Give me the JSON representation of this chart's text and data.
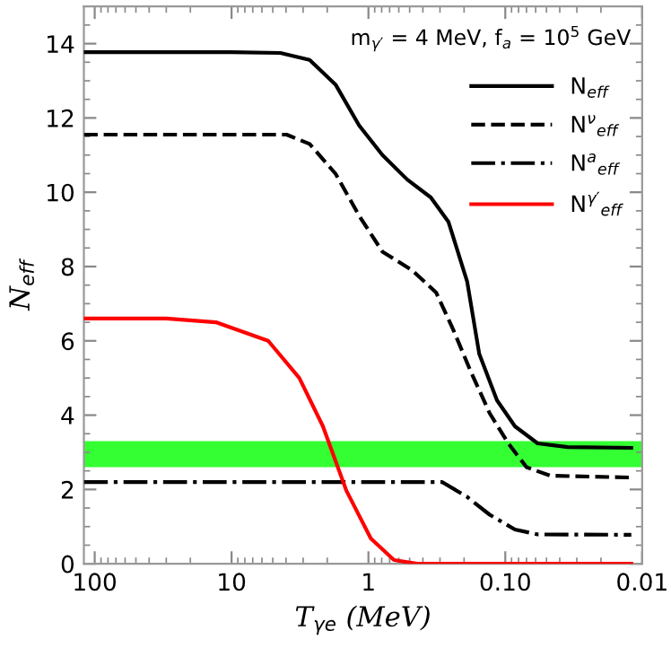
{
  "chart_data": {
    "type": "line",
    "xlabel": "T$_{γe}$ (MeV)",
    "ylabel": "N$_{eff}$",
    "annotations": [
      "m$_{γ′}$ = 4 MeV, f$_{a}$ = 10$^{5}$ GeV"
    ],
    "log": "x",
    "xlim": [
      120,
      0.01
    ],
    "xticks": [
      100,
      10,
      1,
      {
        "value": 0.1,
        "label": "0.10"
      },
      0.01
    ],
    "ylim": [
      0,
      15
    ],
    "yticks": [
      0,
      2,
      4,
      6,
      8,
      10,
      12,
      14
    ],
    "grid": false,
    "legend": "top right",
    "bands": [
      {
        "axis": "y",
        "from": 2.6,
        "to": 3.3,
        "color": "#33ff33"
      }
    ],
    "series": [
      {
        "name": "N$_{eff}$",
        "color": "#000000",
        "line_style": "solid",
        "x": [
          120,
          10,
          4.4,
          2.69,
          1.74,
          1.17,
          0.79,
          0.52,
          0.35,
          0.26,
          0.19,
          0.155,
          0.115,
          0.085,
          0.058,
          0.035,
          0.012
        ],
        "values": [
          13.77,
          13.77,
          13.75,
          13.56,
          12.9,
          11.8,
          11.0,
          10.34,
          9.86,
          9.2,
          7.6,
          5.65,
          4.4,
          3.7,
          3.24,
          3.14,
          3.12
        ]
      },
      {
        "name": "N$^{ν}$$_{eff}$",
        "color": "#000000",
        "line_style": "dashed",
        "x": [
          120,
          10,
          3.96,
          2.69,
          1.74,
          1.17,
          0.79,
          0.48,
          0.32,
          0.24,
          0.18,
          0.13,
          0.095,
          0.07,
          0.047,
          0.012
        ],
        "values": [
          11.55,
          11.55,
          11.55,
          11.3,
          10.5,
          9.37,
          8.4,
          7.9,
          7.3,
          6.3,
          5.2,
          4.05,
          3.24,
          2.6,
          2.37,
          2.32
        ]
      },
      {
        "name": "N$^{a}$$_{eff}$",
        "color": "#000000",
        "line_style": "dashdot",
        "x": [
          120,
          1,
          0.29,
          0.19,
          0.13,
          0.085,
          0.058,
          0.012
        ],
        "values": [
          2.2,
          2.2,
          2.2,
          1.8,
          1.32,
          0.92,
          0.79,
          0.78
        ]
      },
      {
        "name": "N$^{γ′}$$_{eff}$",
        "color": "#ff0000",
        "line_style": "solid",
        "x": [
          120,
          30,
          13,
          5.4,
          3.2,
          2.15,
          1.45,
          0.96,
          0.65,
          0.44,
          0.012
        ],
        "values": [
          6.6,
          6.6,
          6.5,
          6.0,
          5.0,
          3.7,
          1.97,
          0.68,
          0.1,
          0,
          0
        ]
      }
    ]
  }
}
